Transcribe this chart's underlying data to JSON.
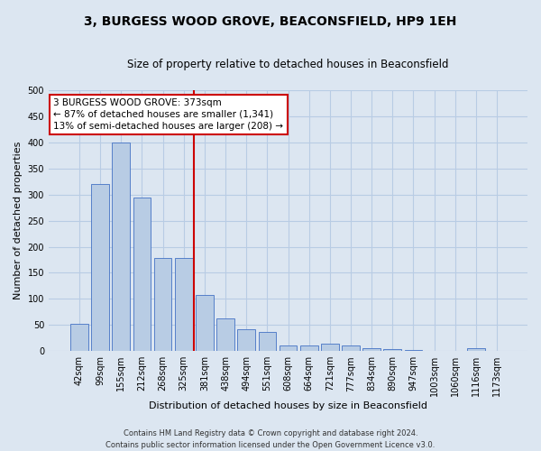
{
  "title": "3, BURGESS WOOD GROVE, BEACONSFIELD, HP9 1EH",
  "subtitle": "Size of property relative to detached houses in Beaconsfield",
  "xlabel": "Distribution of detached houses by size in Beaconsfield",
  "ylabel": "Number of detached properties",
  "categories": [
    "42sqm",
    "99sqm",
    "155sqm",
    "212sqm",
    "268sqm",
    "325sqm",
    "381sqm",
    "438sqm",
    "494sqm",
    "551sqm",
    "608sqm",
    "664sqm",
    "721sqm",
    "777sqm",
    "834sqm",
    "890sqm",
    "947sqm",
    "1003sqm",
    "1060sqm",
    "1116sqm",
    "1173sqm"
  ],
  "values": [
    52,
    320,
    400,
    295,
    178,
    178,
    107,
    63,
    42,
    37,
    11,
    10,
    14,
    10,
    6,
    3,
    2,
    1,
    1,
    5,
    1
  ],
  "bar_color": "#b8cce4",
  "bar_edge_color": "#4472c4",
  "grid_color": "#b8cce4",
  "background_color": "#dce6f1",
  "vline_index": 6,
  "annotation_text": "3 BURGESS WOOD GROVE: 373sqm\n← 87% of detached houses are smaller (1,341)\n13% of semi-detached houses are larger (208) →",
  "annotation_box_facecolor": "#ffffff",
  "annotation_box_edgecolor": "#cc0000",
  "vline_color": "#cc0000",
  "ylim": [
    0,
    500
  ],
  "yticks": [
    0,
    50,
    100,
    150,
    200,
    250,
    300,
    350,
    400,
    450,
    500
  ],
  "footer": "Contains HM Land Registry data © Crown copyright and database right 2024.\nContains public sector information licensed under the Open Government Licence v3.0.",
  "title_fontsize": 10,
  "subtitle_fontsize": 8.5,
  "ylabel_fontsize": 8,
  "xlabel_fontsize": 8,
  "tick_fontsize": 7,
  "annotation_fontsize": 7.5,
  "footer_fontsize": 6
}
